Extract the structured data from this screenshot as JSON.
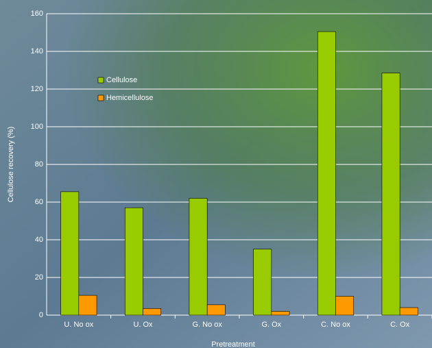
{
  "chart_data": {
    "type": "bar",
    "x_label": "Pretreatment",
    "y_label": "Cellulose recovery (%)",
    "categories": [
      "U. No ox",
      "U. Ox",
      "G. No ox",
      "G. Ox",
      "C. No ox",
      "C. Ox"
    ],
    "series": [
      {
        "name": "Cellulose",
        "color": "#99cc00",
        "values": [
          65.5,
          57,
          62,
          35,
          150.5,
          128.5
        ]
      },
      {
        "name": "Hemicellulose",
        "color": "#ff9900",
        "values": [
          10.5,
          3.5,
          5.5,
          2,
          10,
          4
        ]
      }
    ],
    "ylim": [
      0,
      160
    ],
    "yticks": [
      0,
      20,
      40,
      60,
      80,
      100,
      120,
      140,
      160
    ],
    "grid": true,
    "legend": "upper-left"
  }
}
